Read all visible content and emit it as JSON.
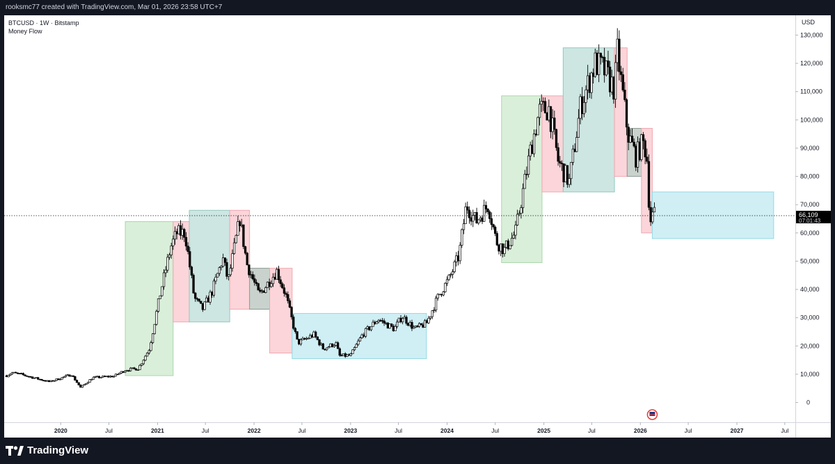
{
  "topbar": {
    "text": "rooksmc77 created with TradingView.com, Mar 01, 2026 23:58 UTC+7"
  },
  "header": {
    "symbol": "BTCUSD · 1W · Bitstamp",
    "indicator": "Money Flow"
  },
  "brand": {
    "name": "TradingView"
  },
  "chart_data": {
    "type": "candlestick",
    "currency": "USD",
    "y_range": [
      -7000,
      137000
    ],
    "y_ticks": [
      {
        "value": 130000,
        "label": "130,000"
      },
      {
        "value": 120000,
        "label": "120,000"
      },
      {
        "value": 110000,
        "label": "110,000"
      },
      {
        "value": 100000,
        "label": "100,000"
      },
      {
        "value": 90000,
        "label": "90,000"
      },
      {
        "value": 80000,
        "label": "80,000"
      },
      {
        "value": 70000,
        "label": "70,000"
      },
      {
        "value": 60000,
        "label": "60,000"
      },
      {
        "value": 50000,
        "label": "50,000"
      },
      {
        "value": 40000,
        "label": "40,000"
      },
      {
        "value": 30000,
        "label": "30,000"
      },
      {
        "value": 20000,
        "label": "20,000"
      },
      {
        "value": 10000,
        "label": "10,000"
      },
      {
        "value": 0,
        "label": "0"
      }
    ],
    "x_range": [
      "2019-06-01",
      "2027-08-10"
    ],
    "x_ticks": [
      {
        "date": "2020-01-01",
        "label": "2020",
        "bold": true
      },
      {
        "date": "2020-07-01",
        "label": "Jul",
        "bold": false
      },
      {
        "date": "2021-01-01",
        "label": "2021",
        "bold": true
      },
      {
        "date": "2021-07-01",
        "label": "Jul",
        "bold": false
      },
      {
        "date": "2022-01-01",
        "label": "2022",
        "bold": true
      },
      {
        "date": "2022-07-01",
        "label": "Jul",
        "bold": false
      },
      {
        "date": "2023-01-01",
        "label": "2023",
        "bold": true
      },
      {
        "date": "2023-07-01",
        "label": "Jul",
        "bold": false
      },
      {
        "date": "2024-01-01",
        "label": "2024",
        "bold": true
      },
      {
        "date": "2024-07-01",
        "label": "Jul",
        "bold": false
      },
      {
        "date": "2025-01-01",
        "label": "2025",
        "bold": true
      },
      {
        "date": "2025-07-01",
        "label": "Jul",
        "bold": false
      },
      {
        "date": "2026-01-01",
        "label": "2026",
        "bold": true
      },
      {
        "date": "2026-07-01",
        "label": "Jul",
        "bold": false
      },
      {
        "date": "2027-01-01",
        "label": "2027",
        "bold": true
      },
      {
        "date": "2027-07-01",
        "label": "Jul",
        "bold": false
      }
    ],
    "current_price": {
      "value": 66109,
      "label": "66,109",
      "countdown": "07:01:43"
    },
    "zones": [
      {
        "x0": "2020-09-01",
        "x1": "2021-03-01",
        "y0": 9500,
        "y1": 64000,
        "color": "green"
      },
      {
        "x0": "2021-03-01",
        "x1": "2021-05-01",
        "y0": 28500,
        "y1": 64000,
        "color": "red"
      },
      {
        "x0": "2021-05-01",
        "x1": "2021-10-01",
        "y0": 28500,
        "y1": 68000,
        "color": "teal"
      },
      {
        "x0": "2021-10-01",
        "x1": "2021-12-15",
        "y0": 33000,
        "y1": 68000,
        "color": "red"
      },
      {
        "x0": "2021-12-15",
        "x1": "2022-03-01",
        "y0": 33000,
        "y1": 47500,
        "color": "gray"
      },
      {
        "x0": "2022-03-01",
        "x1": "2022-05-25",
        "y0": 17500,
        "y1": 47500,
        "color": "red"
      },
      {
        "x0": "2022-05-25",
        "x1": "2023-10-15",
        "y0": 15500,
        "y1": 31500,
        "color": "cyan"
      },
      {
        "x0": "2024-07-25",
        "x1": "2024-12-25",
        "y0": 49500,
        "y1": 108500,
        "color": "green"
      },
      {
        "x0": "2024-12-25",
        "x1": "2025-03-15",
        "y0": 74500,
        "y1": 108500,
        "color": "red"
      },
      {
        "x0": "2025-03-15",
        "x1": "2025-09-25",
        "y0": 74500,
        "y1": 125500,
        "color": "teal"
      },
      {
        "x0": "2025-09-25",
        "x1": "2025-11-12",
        "y0": 80000,
        "y1": 125500,
        "color": "red"
      },
      {
        "x0": "2025-11-12",
        "x1": "2026-01-05",
        "y0": 80000,
        "y1": 97000,
        "color": "gray"
      },
      {
        "x0": "2026-01-05",
        "x1": "2026-02-15",
        "y0": 60000,
        "y1": 97000,
        "color": "red"
      },
      {
        "x0": "2026-02-15",
        "x1": "2027-05-20",
        "y0": 58000,
        "y1": 74500,
        "color": "cyan"
      }
    ],
    "zone_colors": {
      "green": {
        "fill": "#d9efd9",
        "stroke": "#a9d6a9"
      },
      "red": {
        "fill": "#fbd5d9",
        "stroke": "#f1a8b1"
      },
      "teal": {
        "fill": "#cde6e2",
        "stroke": "#93c8c0"
      },
      "gray": {
        "fill": "#c9d2cd",
        "stroke": "#8e9a94"
      },
      "cyan": {
        "fill": "#cfeff5",
        "stroke": "#95d7e3"
      }
    },
    "path_anchors": [
      [
        "2019-06-10",
        9500
      ],
      [
        "2019-07-01",
        10500
      ],
      [
        "2019-08-01",
        10000
      ],
      [
        "2019-10-01",
        8500
      ],
      [
        "2019-11-20",
        7300
      ],
      [
        "2020-02-10",
        9900
      ],
      [
        "2020-03-16",
        5300
      ],
      [
        "2020-05-01",
        8800
      ],
      [
        "2020-07-20",
        9300
      ],
      [
        "2020-09-01",
        11500
      ],
      [
        "2020-10-20",
        12000
      ],
      [
        "2020-12-01",
        19000
      ],
      [
        "2021-01-10",
        38000
      ],
      [
        "2021-02-20",
        55000
      ],
      [
        "2021-03-15",
        60000
      ],
      [
        "2021-04-15",
        60000
      ],
      [
        "2021-05-20",
        37000
      ],
      [
        "2021-06-20",
        33000
      ],
      [
        "2021-07-25",
        39000
      ],
      [
        "2021-09-05",
        51000
      ],
      [
        "2021-09-25",
        43000
      ],
      [
        "2021-11-08",
        65000
      ],
      [
        "2021-12-05",
        49000
      ],
      [
        "2022-01-20",
        38000
      ],
      [
        "2022-03-28",
        46500
      ],
      [
        "2022-05-01",
        38000
      ],
      [
        "2022-06-15",
        21000
      ],
      [
        "2022-08-15",
        24000
      ],
      [
        "2022-09-20",
        19000
      ],
      [
        "2022-11-06",
        21000
      ],
      [
        "2022-11-20",
        16500
      ],
      [
        "2023-01-01",
        16600
      ],
      [
        "2023-02-15",
        24000
      ],
      [
        "2023-04-15",
        29500
      ],
      [
        "2023-06-15",
        26000
      ],
      [
        "2023-07-15",
        30500
      ],
      [
        "2023-09-01",
        26000
      ],
      [
        "2023-10-15",
        28000
      ],
      [
        "2023-12-01",
        38000
      ],
      [
        "2024-01-10",
        44000
      ],
      [
        "2024-02-15",
        52000
      ],
      [
        "2024-03-14",
        70000
      ],
      [
        "2024-04-20",
        64000
      ],
      [
        "2024-06-05",
        70000
      ],
      [
        "2024-07-05",
        57000
      ],
      [
        "2024-08-05",
        54000
      ],
      [
        "2024-09-15",
        60000
      ],
      [
        "2024-11-13",
        90000
      ],
      [
        "2024-12-15",
        103000
      ],
      [
        "2025-01-20",
        104000
      ],
      [
        "2025-02-25",
        85000
      ],
      [
        "2025-04-07",
        78000
      ],
      [
        "2025-05-20",
        105000
      ],
      [
        "2025-07-14",
        120000
      ],
      [
        "2025-08-14",
        118000
      ],
      [
        "2025-09-25",
        111000
      ],
      [
        "2025-10-06",
        124000
      ],
      [
        "2025-10-25",
        110000
      ],
      [
        "2025-11-15",
        95000
      ],
      [
        "2025-12-15",
        87000
      ],
      [
        "2026-01-10",
        92000
      ],
      [
        "2026-01-25",
        88000
      ],
      [
        "2026-02-06",
        64000
      ],
      [
        "2026-02-20",
        67000
      ],
      [
        "2026-03-01",
        66109
      ]
    ]
  }
}
